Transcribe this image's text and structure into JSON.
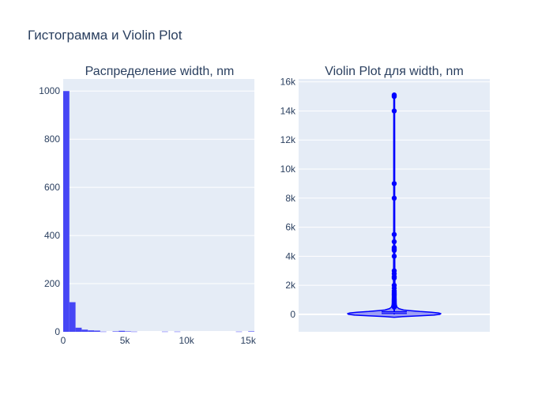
{
  "title": "Гистограмма и Violin Plot",
  "colors": {
    "plot_bg": "#e5ecf6",
    "grid": "#ffffff",
    "bar": "#4646f5",
    "violin_line": "#0000ff",
    "violin_fill": "#7c7cf0",
    "text": "#2a3f5f"
  },
  "chart_data": [
    {
      "type": "bar",
      "subtype": "histogram",
      "title": "Распределение width, nm",
      "bin_width": 500,
      "bins": [
        {
          "x0": 0,
          "x1": 500,
          "count": 1000
        },
        {
          "x0": 500,
          "x1": 1000,
          "count": 123
        },
        {
          "x0": 1000,
          "x1": 1500,
          "count": 17
        },
        {
          "x0": 1500,
          "x1": 2000,
          "count": 9
        },
        {
          "x0": 2000,
          "x1": 2500,
          "count": 6
        },
        {
          "x0": 2500,
          "x1": 3000,
          "count": 5
        },
        {
          "x0": 3000,
          "x1": 3500,
          "count": 1
        },
        {
          "x0": 4000,
          "x1": 4500,
          "count": 2
        },
        {
          "x0": 4500,
          "x1": 5000,
          "count": 4
        },
        {
          "x0": 5000,
          "x1": 5500,
          "count": 2
        },
        {
          "x0": 5500,
          "x1": 6000,
          "count": 1
        },
        {
          "x0": 8000,
          "x1": 8500,
          "count": 1
        },
        {
          "x0": 9000,
          "x1": 9500,
          "count": 1
        },
        {
          "x0": 14000,
          "x1": 14500,
          "count": 1
        },
        {
          "x0": 15000,
          "x1": 15500,
          "count": 2
        }
      ],
      "xlim": [
        0,
        15500
      ],
      "ylim": [
        0,
        1050
      ],
      "xticks": [
        0,
        5000,
        10000,
        15000
      ],
      "xtick_labels": [
        "0",
        "5k",
        "10k",
        "15k"
      ],
      "yticks": [
        0,
        200,
        400,
        600,
        800,
        1000
      ],
      "ytick_labels": [
        "0",
        "200",
        "400",
        "600",
        "800",
        "1000"
      ],
      "grid": true
    },
    {
      "type": "violin",
      "title": "Violin Plot для width, nm",
      "ylim": [
        -1200,
        16200
      ],
      "yticks": [
        0,
        2000,
        4000,
        6000,
        8000,
        10000,
        12000,
        14000,
        16000
      ],
      "ytick_labels": [
        "0",
        "2k",
        "4k",
        "6k",
        "8k",
        "10k",
        "12k",
        "14k",
        "16k"
      ],
      "box": {
        "q1": 30,
        "median": 120,
        "q3": 220,
        "whisker_low": 0,
        "whisker_high": 15100
      },
      "outliers": [
        15100,
        15000,
        14000,
        9000,
        8000,
        5500,
        5000,
        4600,
        4500,
        4400,
        4000,
        3000,
        2800,
        2600,
        2500,
        2000,
        1800,
        1600,
        1500,
        1400,
        1300,
        1200,
        1100,
        1000,
        950,
        900,
        850,
        800,
        750,
        700,
        650,
        600,
        550,
        500
      ],
      "density": [
        {
          "y": -200,
          "w": 0.0
        },
        {
          "y": -150,
          "w": 0.2
        },
        {
          "y": -100,
          "w": 0.55
        },
        {
          "y": -50,
          "w": 0.85
        },
        {
          "y": 0,
          "w": 0.98
        },
        {
          "y": 50,
          "w": 1.0
        },
        {
          "y": 100,
          "w": 0.95
        },
        {
          "y": 150,
          "w": 0.8
        },
        {
          "y": 200,
          "w": 0.55
        },
        {
          "y": 250,
          "w": 0.35
        },
        {
          "y": 300,
          "w": 0.2
        },
        {
          "y": 400,
          "w": 0.1
        },
        {
          "y": 500,
          "w": 0.06
        },
        {
          "y": 700,
          "w": 0.04
        },
        {
          "y": 1000,
          "w": 0.025
        },
        {
          "y": 2000,
          "w": 0.015
        },
        {
          "y": 4000,
          "w": 0.012
        },
        {
          "y": 8000,
          "w": 0.01
        },
        {
          "y": 12000,
          "w": 0.01
        },
        {
          "y": 15100,
          "w": 0.008
        },
        {
          "y": 15150,
          "w": 0.0
        }
      ]
    }
  ]
}
